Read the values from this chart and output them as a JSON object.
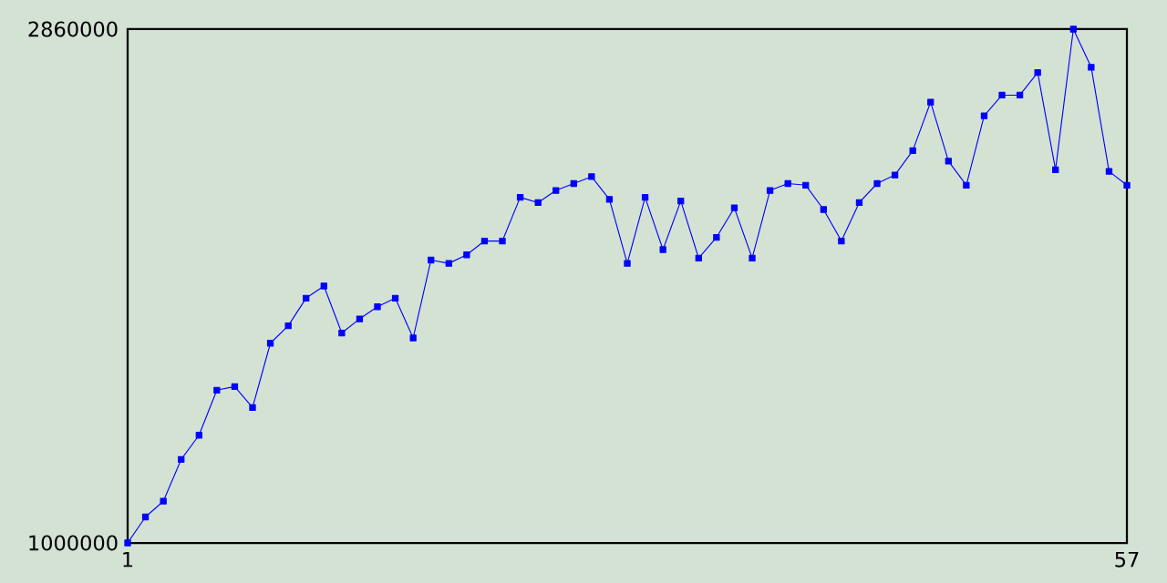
{
  "chart_data": {
    "type": "line",
    "x": [
      1,
      2,
      3,
      4,
      5,
      6,
      7,
      8,
      9,
      10,
      11,
      12,
      13,
      14,
      15,
      16,
      17,
      18,
      19,
      20,
      21,
      22,
      23,
      24,
      25,
      26,
      27,
      28,
      29,
      30,
      31,
      32,
      33,
      34,
      35,
      36,
      37,
      38,
      39,
      40,
      41,
      42,
      43,
      44,
      45,
      46,
      47,
      48,
      49,
      50,
      51,
      52,
      53,
      54,
      55,
      56,
      57
    ],
    "series": [
      {
        "color": "#0000ff",
        "values": [
          1000000,
          1094000,
          1151000,
          1302000,
          1390000,
          1553000,
          1566000,
          1490000,
          1723000,
          1786000,
          1886000,
          1930000,
          1760000,
          1811000,
          1855000,
          1886000,
          1742000,
          2024000,
          2012000,
          2043000,
          2093000,
          2093000,
          2251000,
          2232000,
          2276000,
          2301000,
          2326000,
          2244000,
          2012000,
          2251000,
          2062000,
          2238000,
          2031000,
          2106000,
          2213000,
          2031000,
          2276000,
          2301000,
          2295000,
          2207000,
          2093000,
          2232000,
          2301000,
          2332000,
          2420000,
          2596000,
          2382000,
          2295000,
          2546000,
          2621000,
          2621000,
          2703000,
          2351000,
          2860000,
          2722000,
          2345000,
          2295000
        ]
      }
    ],
    "xlim": [
      1,
      57
    ],
    "ylim": [
      1000000,
      2860000
    ],
    "xticks": [
      1,
      57
    ],
    "yticks": [
      1000000,
      2860000
    ],
    "marker": "square",
    "line_style": "solid"
  }
}
